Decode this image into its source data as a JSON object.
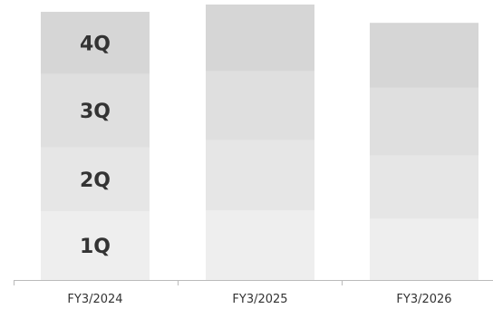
{
  "chart_data": {
    "type": "bar",
    "stacked": true,
    "categories": [
      "FY3/2024",
      "FY3/2025",
      "FY3/2026"
    ],
    "series": [
      {
        "name": "1Q",
        "values": [
          75,
          76,
          67
        ],
        "color": "#eeeeee"
      },
      {
        "name": "2Q",
        "values": [
          70,
          77,
          69
        ],
        "color": "#e6e6e6"
      },
      {
        "name": "3Q",
        "values": [
          80,
          75,
          74
        ],
        "color": "#dfdfdf"
      },
      {
        "name": "4Q",
        "values": [
          68,
          73,
          71
        ],
        "color": "#d6d6d6"
      }
    ],
    "title": "",
    "xlabel": "",
    "ylabel": "",
    "ylim": [
      0,
      300
    ],
    "grid": false,
    "legend": "none",
    "segment_labels_on": "FY3/2024",
    "axis_color": "#bbbbbb",
    "label_color": "#333333"
  }
}
